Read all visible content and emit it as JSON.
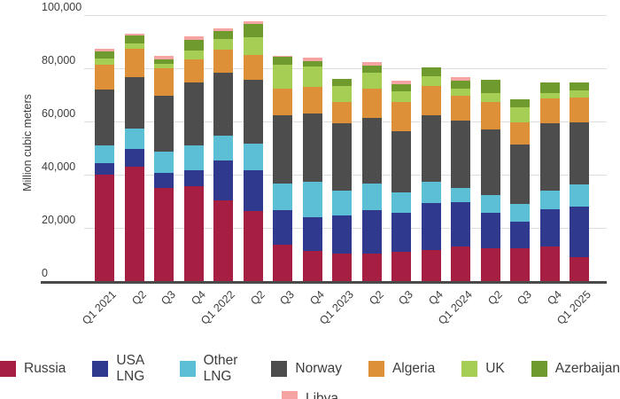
{
  "figure": {
    "background": "#ffffff",
    "text_color": "#3d3d3d",
    "gridline_color": "#dedede",
    "axis_line_color": "#4a4a4a"
  },
  "chart_data": {
    "type": "bar",
    "stacked": true,
    "title": "",
    "xlabel": "",
    "ylabel": "Million cubic meters",
    "ylim": [
      0,
      100000
    ],
    "grid": "horizontal",
    "legend_position": "bottom",
    "y_ticks": [
      {
        "value": 0,
        "label": "0"
      },
      {
        "value": 20000,
        "label": "20,000"
      },
      {
        "value": 40000,
        "label": "40,000"
      },
      {
        "value": 60000,
        "label": "60,000"
      },
      {
        "value": 80000,
        "label": "80,000"
      },
      {
        "value": 100000,
        "label": "100,000"
      }
    ],
    "categories": [
      "Q1 2021",
      "Q2",
      "Q3",
      "Q4",
      "Q1 2022",
      "Q2",
      "Q3",
      "Q4",
      "Q1 2023",
      "Q2",
      "Q3",
      "Q4",
      "Q1 2024",
      "Q2",
      "Q3",
      "Q4",
      "Q1 2025"
    ],
    "series": [
      {
        "name": "Russia",
        "color": "#a61e42",
        "values": [
          40000,
          43000,
          35000,
          35600,
          30500,
          26300,
          13600,
          11400,
          10300,
          10300,
          10900,
          11700,
          13100,
          12500,
          12500,
          13000,
          9000
        ]
      },
      {
        "name": "USA LNG",
        "color": "#2f3a8f",
        "values": [
          4400,
          6600,
          5600,
          6000,
          14800,
          15400,
          13200,
          12600,
          14300,
          16500,
          14800,
          17600,
          16500,
          13200,
          9900,
          14000,
          19000
        ]
      },
      {
        "name": "Other LNG",
        "color": "#5cbfd5",
        "values": [
          6600,
          7700,
          8200,
          9400,
          9300,
          9900,
          9900,
          13200,
          9300,
          9900,
          7700,
          8200,
          5500,
          6600,
          6600,
          6900,
          8300
        ]
      },
      {
        "name": "Norway",
        "color": "#4d4d4d",
        "values": [
          21100,
          19500,
          21000,
          23600,
          23600,
          24200,
          25800,
          25800,
          25300,
          24700,
          23100,
          24700,
          25300,
          24700,
          22500,
          25500,
          23300
        ]
      },
      {
        "name": "Algeria",
        "color": "#dd9038",
        "values": [
          9100,
          10700,
          10300,
          8800,
          8800,
          9300,
          9900,
          9900,
          8200,
          11000,
          11000,
          11000,
          9300,
          10400,
          8200,
          9400,
          9300
        ]
      },
      {
        "name": "UK",
        "color": "#a6ce55",
        "values": [
          2500,
          2000,
          1500,
          3300,
          3900,
          6600,
          8800,
          7700,
          6000,
          6000,
          3800,
          3900,
          2800,
          3300,
          5500,
          2000,
          2800
        ]
      },
      {
        "name": "Azerbaijan",
        "color": "#6f9a2e",
        "values": [
          2700,
          2700,
          1900,
          4100,
          3100,
          4900,
          3300,
          2200,
          2700,
          2700,
          2800,
          3300,
          2700,
          4900,
          3300,
          3900,
          3000
        ]
      },
      {
        "name": "Libya",
        "color": "#f5a3a3",
        "values": [
          1000,
          800,
          1300,
          1100,
          1100,
          1100,
          300,
          1100,
          0,
          1100,
          1100,
          0,
          1600,
          0,
          0,
          0,
          0
        ]
      }
    ],
    "legend_rows": [
      7,
      1
    ]
  }
}
